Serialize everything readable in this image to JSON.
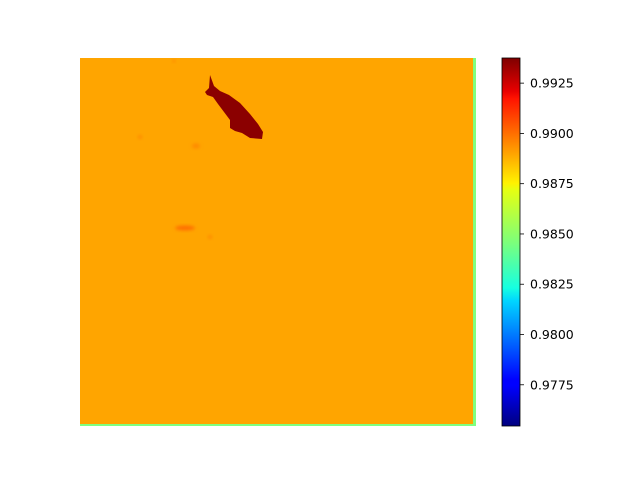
{
  "chart_data": {
    "type": "heatmap",
    "title": "",
    "xlabel": "",
    "ylabel": "",
    "axes_visible": false,
    "colormap": "jet",
    "background_value": 0.9893,
    "background_color": "#ffa500",
    "features": [
      {
        "kind": "fish-shaped blob",
        "value": 0.9935,
        "color": "#8b0000"
      },
      {
        "kind": "small smear",
        "value": 0.9905,
        "color": "#ff7000"
      },
      {
        "kind": "small spot",
        "value": 0.99,
        "color": "#ff8a00"
      }
    ],
    "edge_value": 0.9855,
    "edge_color": "#7fff7f",
    "colorbar": {
      "vmin": 0.97545,
      "vmax": 0.99375,
      "ticks": [
        0.9775,
        0.98,
        0.9825,
        0.985,
        0.9875,
        0.99,
        0.9925
      ],
      "tick_labels": [
        "0.9775",
        "0.9800",
        "0.9825",
        "0.9850",
        "0.9875",
        "0.9900",
        "0.9925"
      ]
    }
  }
}
